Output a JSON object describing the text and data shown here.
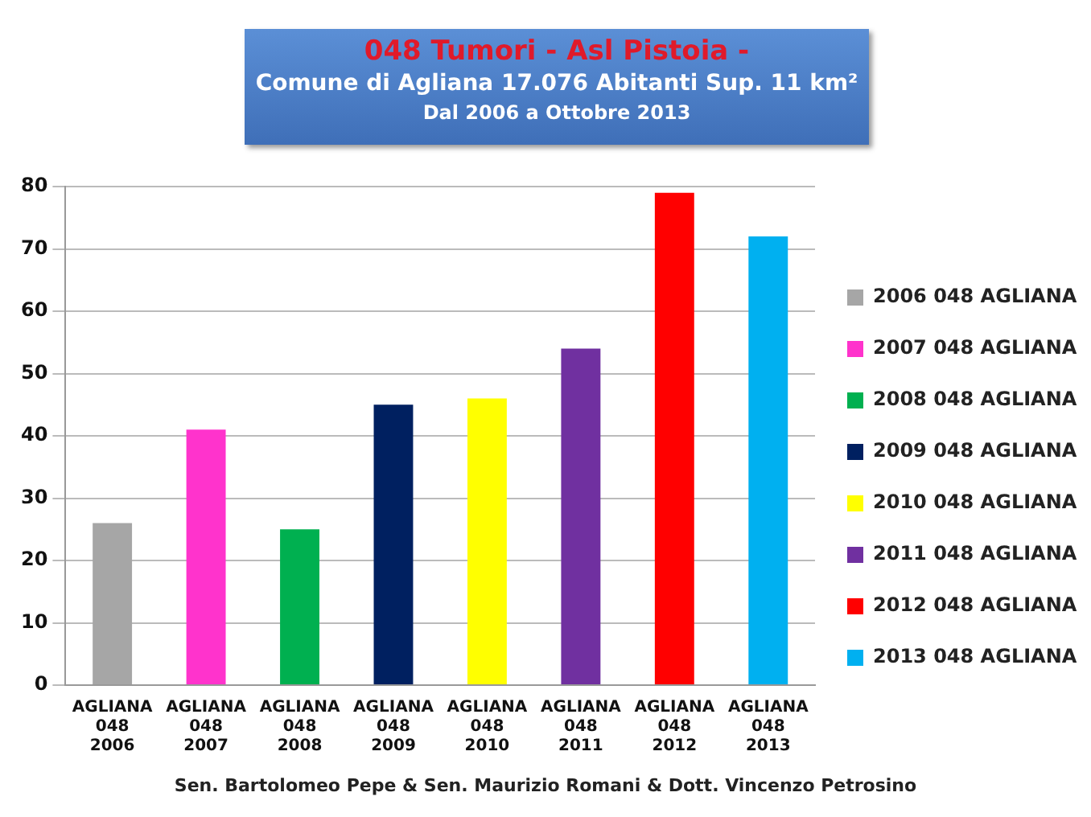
{
  "chart_data": {
    "type": "bar",
    "title": "048 Tumori   - Asl Pistoia -",
    "subtitle": "Comune di Agliana 17.076 Abitanti Sup. 11 km²",
    "annotations": [
      "Dal 2006 a Ottobre 2013",
      "Sen. Bartolomeo Pepe & Sen. Maurizio Romani  & Dott.  Vincenzo Petrosino"
    ],
    "categories": [
      "AGLIANA 048 2006",
      "AGLIANA 048 2007",
      "AGLIANA 048 2008",
      "AGLIANA 048 2009",
      "AGLIANA 048 2010",
      "AGLIANA 048 2011",
      "AGLIANA 048 2012",
      "AGLIANA 048 2013"
    ],
    "series": [
      {
        "name": "2006 048 AGLIANA",
        "color": "#a6a6a6",
        "values": [
          26,
          null,
          null,
          null,
          null,
          null,
          null,
          null
        ]
      },
      {
        "name": "2007 048 AGLIANA",
        "color": "#ff33cc",
        "values": [
          null,
          41,
          null,
          null,
          null,
          null,
          null,
          null
        ]
      },
      {
        "name": "2008 048 AGLIANA",
        "color": "#00b050",
        "values": [
          null,
          null,
          25,
          null,
          null,
          null,
          null,
          null
        ]
      },
      {
        "name": "2009 048 AGLIANA",
        "color": "#002060",
        "values": [
          null,
          null,
          null,
          45,
          null,
          null,
          null,
          null
        ]
      },
      {
        "name": "2010 048 AGLIANA",
        "color": "#ffff00",
        "values": [
          null,
          null,
          null,
          null,
          46,
          null,
          null,
          null
        ]
      },
      {
        "name": "2011 048 AGLIANA",
        "color": "#7030a0",
        "values": [
          null,
          null,
          null,
          null,
          null,
          54,
          null,
          null
        ]
      },
      {
        "name": "2012 048 AGLIANA",
        "color": "#ff0000",
        "values": [
          null,
          null,
          null,
          null,
          null,
          null,
          79,
          null
        ]
      },
      {
        "name": "2013 048 AGLIANA",
        "color": "#00b0f0",
        "values": [
          null,
          null,
          null,
          null,
          null,
          null,
          null,
          72
        ]
      }
    ],
    "ylim": [
      0,
      80
    ],
    "yticks": [
      0,
      10,
      20,
      30,
      40,
      50,
      60,
      70,
      80
    ],
    "grid": "y",
    "legend": "right"
  }
}
